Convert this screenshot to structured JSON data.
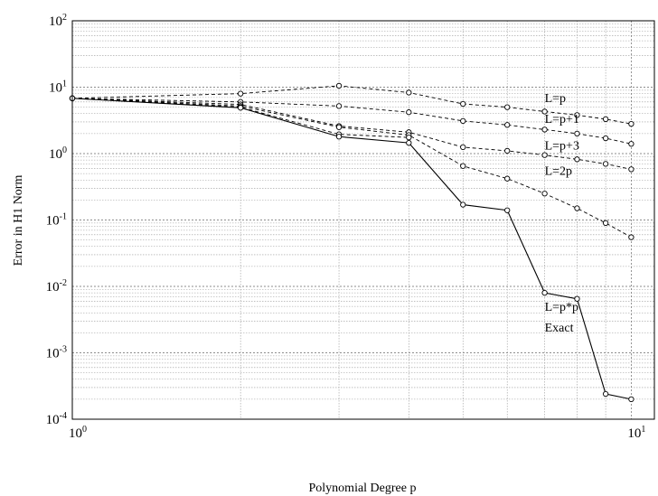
{
  "chart_data": {
    "type": "line",
    "xscale": "log",
    "yscale": "log",
    "xlabel": "Polynomial   Degree p",
    "ylabel": "Error  in  H1  Norm",
    "xlim": [
      1,
      11
    ],
    "ylim": [
      0.0001,
      100
    ],
    "grid": true,
    "x_ticks": [
      {
        "base": "10",
        "exp": "0"
      },
      {
        "base": "10",
        "exp": "1"
      }
    ],
    "y_ticks": [
      {
        "base": "10",
        "exp": "-4"
      },
      {
        "base": "10",
        "exp": "-3"
      },
      {
        "base": "10",
        "exp": "-2"
      },
      {
        "base": "10",
        "exp": "-1"
      },
      {
        "base": "10",
        "exp": "0"
      },
      {
        "base": "10",
        "exp": "1"
      },
      {
        "base": "10",
        "exp": "2"
      }
    ],
    "x": [
      1,
      2,
      3,
      4,
      5,
      6,
      7,
      8,
      9,
      10,
      11
    ],
    "series": [
      {
        "name": "",
        "style": "dashed",
        "values": [
          6.8,
          8.0,
          10.5,
          8.3,
          5.6,
          5.0,
          4.3,
          3.8,
          3.3,
          2.8,
          null
        ]
      },
      {
        "name": "",
        "style": "dashed",
        "values": [
          6.8,
          6.0,
          5.2,
          4.2,
          3.1,
          2.7,
          2.3,
          2.0,
          1.7,
          1.4,
          null
        ]
      },
      {
        "name": "",
        "style": "dashed",
        "values": [
          6.8,
          5.5,
          2.6,
          2.1,
          1.25,
          1.1,
          0.95,
          0.82,
          0.7,
          0.58,
          null
        ]
      },
      {
        "name": "",
        "style": "dashed",
        "values": [
          6.8,
          5.2,
          2.5,
          1.9,
          0.65,
          0.42,
          0.25,
          0.15,
          0.09,
          0.055,
          null
        ]
      },
      {
        "name": "",
        "style": "dashed",
        "values": [
          6.8,
          5.0,
          1.95,
          1.75,
          null,
          null,
          null,
          null,
          null,
          null,
          null
        ]
      },
      {
        "name": "",
        "style": "solid",
        "values": [
          6.8,
          4.9,
          1.8,
          1.45,
          0.17,
          0.14,
          0.008,
          0.0065,
          0.00024,
          0.0002,
          null
        ]
      }
    ],
    "annotations": [
      {
        "text": "L=p",
        "x": 7,
        "y": 6.0
      },
      {
        "text": "L=p+1",
        "x": 7,
        "y": 2.9
      },
      {
        "text": "L=p+3",
        "x": 7,
        "y": 1.15
      },
      {
        "text": "L=2p",
        "x": 7,
        "y": 0.48
      },
      {
        "text": "L=p*p",
        "x": 7,
        "y": 0.0043
      },
      {
        "text": "Exact",
        "x": 7,
        "y": 0.0021
      }
    ]
  }
}
